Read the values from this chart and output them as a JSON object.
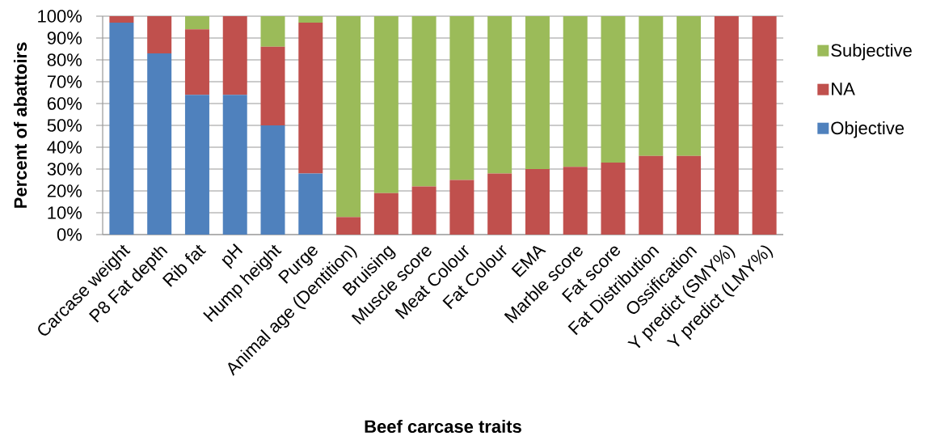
{
  "chart_data": {
    "type": "bar",
    "stacked": true,
    "xlabel": "Beef carcase traits",
    "ylabel": "Percent of abattoirs",
    "categories": [
      "Carcase weight",
      "P8 Fat depth",
      "Rib fat",
      "pH",
      "Hump height",
      "Purge",
      "Animal age (Dentition)",
      "Bruising",
      "Muscle score",
      "Meat Colour",
      "Fat Colour",
      "EMA",
      "Marble score",
      "Fat score",
      "Fat Distribution",
      "Ossification",
      "Y predict (SMY%)",
      "Y predict (LMY%)"
    ],
    "series": [
      {
        "name": "Objective",
        "color": "#4f81bd",
        "values": [
          97,
          83,
          64,
          64,
          50,
          28,
          0,
          0,
          0,
          0,
          0,
          0,
          0,
          0,
          0,
          0,
          0,
          0
        ]
      },
      {
        "name": "NA",
        "color": "#c0504d",
        "values": [
          3,
          17,
          30,
          36,
          36,
          69,
          8,
          19,
          22,
          25,
          28,
          30,
          31,
          33,
          36,
          36,
          100,
          100
        ]
      },
      {
        "name": "Subjective",
        "color": "#9bbb59",
        "values": [
          0,
          0,
          6,
          0,
          14,
          3,
          92,
          81,
          78,
          75,
          72,
          70,
          69,
          67,
          64,
          64,
          0,
          0
        ]
      }
    ],
    "ylim": [
      0,
      100
    ],
    "yticks": [
      {
        "value": 0,
        "label": "0%"
      },
      {
        "value": 10,
        "label": "10%"
      },
      {
        "value": 20,
        "label": "20%"
      },
      {
        "value": 30,
        "label": "30%"
      },
      {
        "value": 40,
        "label": "40%"
      },
      {
        "value": 50,
        "label": "50%"
      },
      {
        "value": 60,
        "label": "60%"
      },
      {
        "value": 70,
        "label": "70%"
      },
      {
        "value": 80,
        "label": "80%"
      },
      {
        "value": 90,
        "label": "90%"
      },
      {
        "value": 100,
        "label": "100%"
      }
    ],
    "grid": "y",
    "legend": "right"
  }
}
